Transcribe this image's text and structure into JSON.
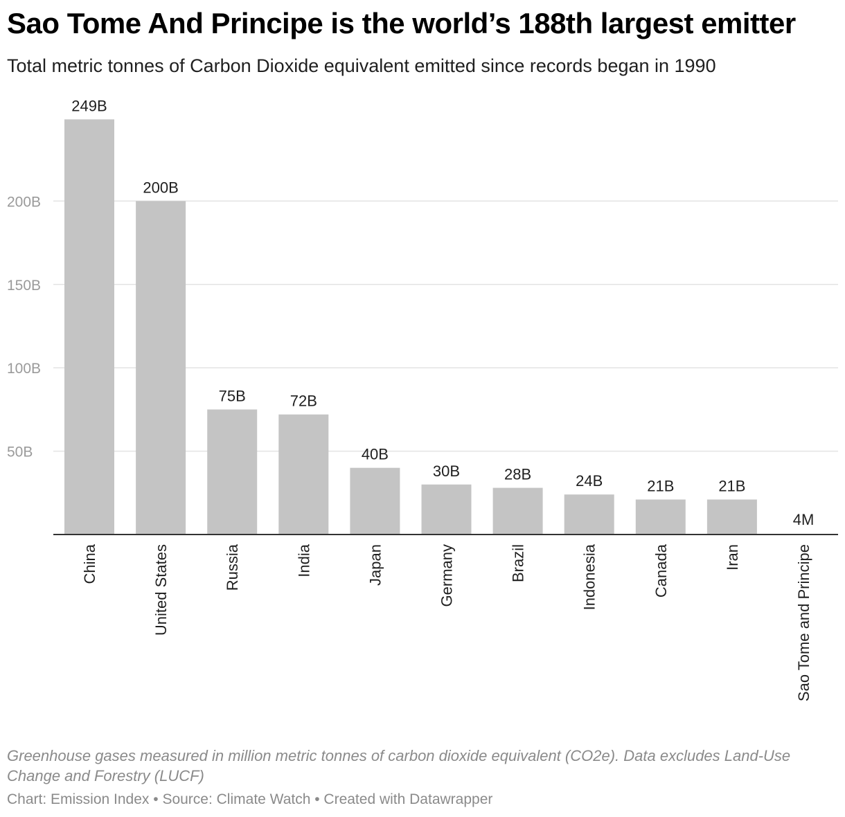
{
  "title": "Sao Tome And Principe is the world’s 188th largest emitter",
  "subtitle": "Total metric tonnes of Carbon Dioxide equivalent emitted since records began in 1990",
  "note": "Greenhouse gases measured in million metric tonnes of carbon dioxide equivalent (CO2e). Data excludes Land-Use Change and Forestry (LUCF)",
  "credits": "Chart: Emission Index • Source: Climate Watch • Created with Datawrapper",
  "chart_data": {
    "type": "bar",
    "categories": [
      "China",
      "United States",
      "Russia",
      "India",
      "Japan",
      "Germany",
      "Brazil",
      "Indonesia",
      "Canada",
      "Iran",
      "Sao Tome and Principe"
    ],
    "values": [
      249,
      200,
      75,
      72,
      40,
      30,
      28,
      24,
      21,
      21,
      0.004
    ],
    "value_unit": "billion metric tonnes CO2e",
    "data_labels": [
      "249B",
      "200B",
      "75B",
      "72B",
      "40B",
      "30B",
      "28B",
      "24B",
      "21B",
      "21B",
      "4M"
    ],
    "y_ticks": [
      50,
      100,
      150,
      200
    ],
    "y_tick_labels": [
      "50B",
      "100B",
      "150B",
      "200B"
    ],
    "ylim": [
      0,
      249
    ],
    "grid": true,
    "legend": "none",
    "colors": {
      "bar": "#c4c4c4",
      "grid": "#e3e3e3",
      "baseline": "#333333",
      "tick_label": "#9a9a9a",
      "data_label": "#1f1f1f",
      "category_label": "#1f1f1f"
    }
  }
}
